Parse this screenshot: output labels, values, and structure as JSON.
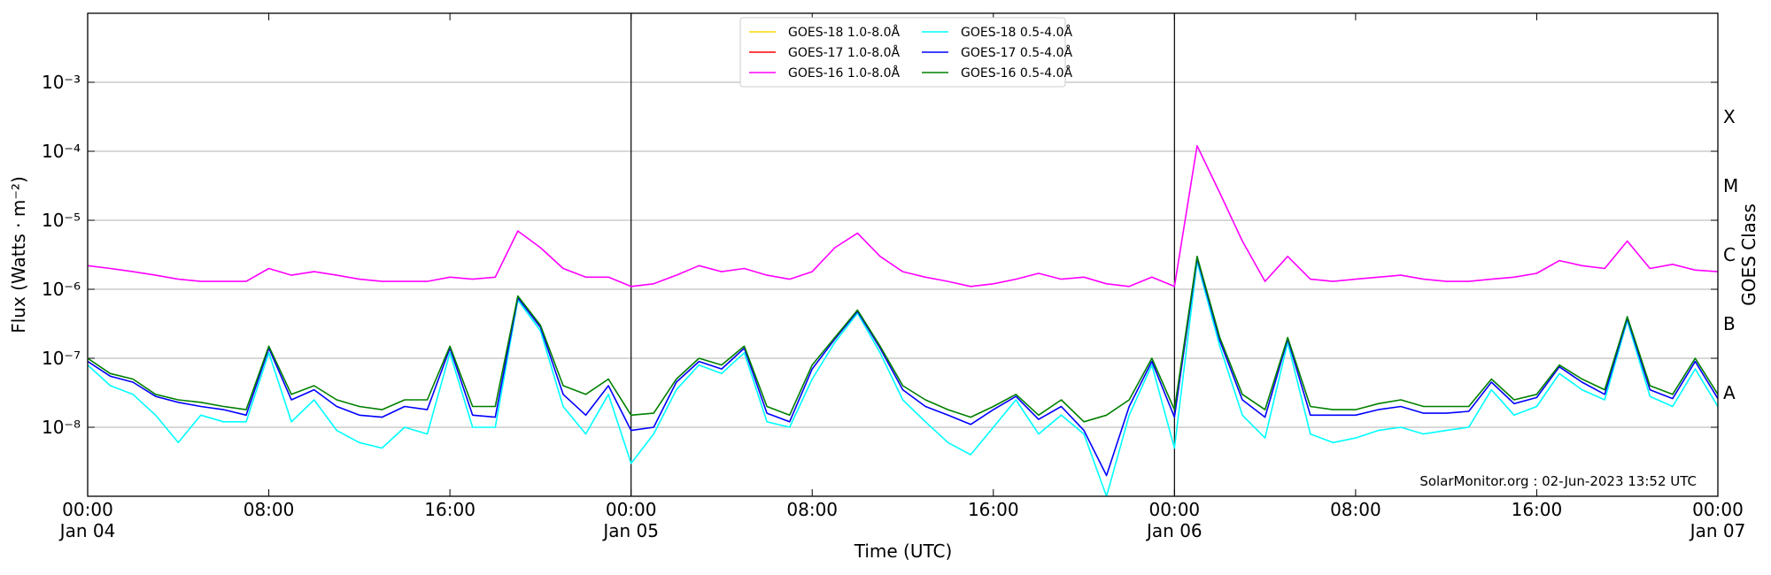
{
  "chart_data": {
    "type": "line",
    "ylabel": "Flux (Watts · m⁻²)",
    "xlabel": "Time (UTC)",
    "y2label": "GOES Class",
    "annotation": "SolarMonitor.org : 02-Jun-2023 13:52 UTC",
    "log_scale": true,
    "grid": true,
    "legend": "top",
    "xlim": [
      0,
      72
    ],
    "xticks": [
      {
        "value": 0,
        "label": "00:00\nJan 04"
      },
      {
        "value": 8,
        "label": "08:00"
      },
      {
        "value": 16,
        "label": "16:00"
      },
      {
        "value": 24,
        "label": "00:00\nJan 05"
      },
      {
        "value": 32,
        "label": "08:00"
      },
      {
        "value": 40,
        "label": "16:00"
      },
      {
        "value": 48,
        "label": "00:00\nJan 06"
      },
      {
        "value": 56,
        "label": "08:00"
      },
      {
        "value": 64,
        "label": "16:00"
      },
      {
        "value": 72,
        "label": "00:00\nJan 07"
      }
    ],
    "vlines": [
      24,
      48
    ],
    "ylim": [
      1e-09,
      0.01
    ],
    "yticks": [
      {
        "value": 1e-08,
        "label": "10⁻⁸"
      },
      {
        "value": 1e-07,
        "label": "10⁻⁷"
      },
      {
        "value": 1e-06,
        "label": "10⁻⁶"
      },
      {
        "value": 1e-05,
        "label": "10⁻⁵"
      },
      {
        "value": 0.0001,
        "label": "10⁻⁴"
      },
      {
        "value": 0.001,
        "label": "10⁻³"
      }
    ],
    "y2lim": [
      1e-09,
      0.01
    ],
    "y2ticks": [
      {
        "value": 3.16e-08,
        "label": "A"
      },
      {
        "value": 3.16e-07,
        "label": "B"
      },
      {
        "value": 3.16e-06,
        "label": "C"
      },
      {
        "value": 3.16e-05,
        "label": "M"
      },
      {
        "value": 0.000316,
        "label": "X"
      }
    ],
    "x": [
      0,
      1,
      2,
      3,
      4,
      5,
      6,
      7,
      8,
      9,
      10,
      11,
      12,
      13,
      14,
      15,
      16,
      17,
      18,
      19,
      20,
      21,
      22,
      23,
      24,
      25,
      26,
      27,
      28,
      29,
      30,
      31,
      32,
      33,
      34,
      35,
      36,
      37,
      38,
      39,
      40,
      41,
      42,
      43,
      44,
      45,
      46,
      47,
      48,
      49,
      50,
      51,
      52,
      53,
      54,
      55,
      56,
      57,
      58,
      59,
      60,
      61,
      62,
      63,
      64,
      65,
      66,
      67,
      68,
      69,
      70,
      71,
      72
    ],
    "series": [
      {
        "name": "GOES-18 1.0-8.0Å",
        "color": "#ffd700",
        "values": [
          null,
          null,
          null,
          null,
          null,
          null,
          null,
          null,
          null,
          null,
          null,
          null,
          null,
          null,
          null,
          null,
          null,
          null,
          null,
          null,
          null,
          null,
          null,
          null,
          null,
          null,
          null,
          null,
          null,
          null,
          null,
          null,
          null,
          null,
          null,
          null,
          null,
          null,
          null,
          null,
          null,
          null,
          null,
          null,
          null,
          null,
          null,
          null,
          null,
          null,
          null,
          null,
          null,
          null,
          null,
          null,
          null,
          null,
          null,
          null,
          null,
          null,
          null,
          null,
          null,
          null,
          null,
          null,
          null,
          null,
          null,
          null,
          null
        ]
      },
      {
        "name": "GOES-17 1.0-8.0Å",
        "color": "#ff0000",
        "values": [
          null,
          null,
          null,
          null,
          null,
          null,
          null,
          null,
          null,
          null,
          null,
          null,
          null,
          null,
          null,
          null,
          null,
          null,
          null,
          null,
          null,
          null,
          null,
          null,
          null,
          null,
          null,
          null,
          null,
          null,
          null,
          null,
          null,
          null,
          null,
          null,
          null,
          null,
          null,
          null,
          null,
          null,
          null,
          null,
          null,
          null,
          null,
          null,
          null,
          null,
          null,
          null,
          null,
          null,
          null,
          null,
          null,
          null,
          null,
          null,
          null,
          null,
          null,
          null,
          null,
          null,
          null,
          null,
          null,
          null,
          null,
          null,
          null
        ]
      },
      {
        "name": "GOES-16 1.0-8.0Å",
        "color": "#ff00ff",
        "values": [
          2.2e-06,
          2e-06,
          1.8e-06,
          1.6e-06,
          1.4e-06,
          1.3e-06,
          1.3e-06,
          1.3e-06,
          2e-06,
          1.6e-06,
          1.8e-06,
          1.6e-06,
          1.4e-06,
          1.3e-06,
          1.3e-06,
          1.3e-06,
          1.5e-06,
          1.4e-06,
          1.5e-06,
          7e-06,
          4e-06,
          2e-06,
          1.5e-06,
          1.5e-06,
          1.1e-06,
          1.2e-06,
          1.6e-06,
          2.2e-06,
          1.8e-06,
          2e-06,
          1.6e-06,
          1.4e-06,
          1.8e-06,
          4e-06,
          6.5e-06,
          3e-06,
          1.8e-06,
          1.5e-06,
          1.3e-06,
          1.1e-06,
          1.2e-06,
          1.4e-06,
          1.7e-06,
          1.4e-06,
          1.5e-06,
          1.2e-06,
          1.1e-06,
          1.5e-06,
          1.1e-06,
          0.00012,
          2.5e-05,
          5e-06,
          1.3e-06,
          3e-06,
          1.4e-06,
          1.3e-06,
          1.4e-06,
          1.5e-06,
          1.6e-06,
          1.4e-06,
          1.3e-06,
          1.3e-06,
          1.4e-06,
          1.5e-06,
          1.7e-06,
          2.6e-06,
          2.2e-06,
          2e-06,
          5e-06,
          2e-06,
          2.3e-06,
          1.9e-06,
          1.8e-06
        ]
      },
      {
        "name": "GOES-18 0.5-4.0Å",
        "color": "#00ffff",
        "values": [
          8e-08,
          4e-08,
          3e-08,
          1.5e-08,
          6e-09,
          1.5e-08,
          1.2e-08,
          1.2e-08,
          1.2e-07,
          1.2e-08,
          2.5e-08,
          9e-09,
          6e-09,
          5e-09,
          1e-08,
          8e-09,
          1.2e-07,
          1e-08,
          1e-08,
          7e-07,
          2.5e-07,
          2e-08,
          8e-09,
          3e-08,
          3e-09,
          8e-09,
          3.5e-08,
          8e-08,
          6e-08,
          1.2e-07,
          1.2e-08,
          1e-08,
          5e-08,
          1.7e-07,
          4.5e-07,
          1.2e-07,
          2.5e-08,
          1.2e-08,
          6e-09,
          4e-09,
          1e-08,
          2.5e-08,
          8e-09,
          1.5e-08,
          8e-09,
          1e-09,
          1.5e-08,
          8e-08,
          5e-09,
          2.5e-06,
          1.5e-07,
          1.5e-08,
          7e-09,
          1.7e-07,
          8e-09,
          6e-09,
          7e-09,
          9e-09,
          1e-08,
          8e-09,
          9e-09,
          1e-08,
          3.5e-08,
          1.5e-08,
          2e-08,
          6e-08,
          3.5e-08,
          2.5e-08,
          3.5e-07,
          2.8e-08,
          2e-08,
          7e-08,
          2e-08
        ]
      },
      {
        "name": "GOES-17 0.5-4.0Å",
        "color": "#0000ff",
        "values": [
          9e-08,
          5.5e-08,
          4.5e-08,
          2.8e-08,
          2.3e-08,
          2e-08,
          1.8e-08,
          1.5e-08,
          1.4e-07,
          2.5e-08,
          3.5e-08,
          2e-08,
          1.5e-08,
          1.4e-08,
          2e-08,
          1.8e-08,
          1.4e-07,
          1.5e-08,
          1.4e-08,
          7.5e-07,
          2.8e-07,
          3e-08,
          1.5e-08,
          4e-08,
          9e-09,
          1e-08,
          4.5e-08,
          9e-08,
          7e-08,
          1.4e-07,
          1.6e-08,
          1.2e-08,
          7e-08,
          1.9e-07,
          4.8e-07,
          1.4e-07,
          3.5e-08,
          2e-08,
          1.5e-08,
          1.1e-08,
          1.8e-08,
          2.8e-08,
          1.3e-08,
          2e-08,
          9e-09,
          2e-09,
          2e-08,
          9e-08,
          1.4e-08,
          2.8e-06,
          1.8e-07,
          2.5e-08,
          1.4e-08,
          1.9e-07,
          1.5e-08,
          1.5e-08,
          1.5e-08,
          1.8e-08,
          2e-08,
          1.6e-08,
          1.6e-08,
          1.7e-08,
          4.5e-08,
          2.2e-08,
          2.7e-08,
          7.5e-08,
          4.5e-08,
          3e-08,
          3.8e-07,
          3.5e-08,
          2.6e-08,
          9e-08,
          2.6e-08
        ]
      },
      {
        "name": "GOES-16 0.5-4.0Å",
        "color": "#008000",
        "values": [
          1e-07,
          6e-08,
          5e-08,
          3e-08,
          2.5e-08,
          2.3e-08,
          2e-08,
          1.8e-08,
          1.5e-07,
          3e-08,
          4e-08,
          2.5e-08,
          2e-08,
          1.8e-08,
          2.5e-08,
          2.5e-08,
          1.5e-07,
          2e-08,
          2e-08,
          8e-07,
          3e-07,
          4e-08,
          3e-08,
          5e-08,
          1.5e-08,
          1.6e-08,
          5e-08,
          1e-07,
          8e-08,
          1.5e-07,
          2e-08,
          1.5e-08,
          8e-08,
          2e-07,
          5e-07,
          1.5e-07,
          4e-08,
          2.5e-08,
          1.8e-08,
          1.4e-08,
          2e-08,
          3e-08,
          1.5e-08,
          2.5e-08,
          1.2e-08,
          1.5e-08,
          2.5e-08,
          1e-07,
          1.8e-08,
          3e-06,
          2e-07,
          3e-08,
          1.8e-08,
          2e-07,
          2e-08,
          1.8e-08,
          1.8e-08,
          2.2e-08,
          2.5e-08,
          2e-08,
          2e-08,
          2e-08,
          5e-08,
          2.5e-08,
          3e-08,
          8e-08,
          5e-08,
          3.5e-08,
          4e-07,
          4e-08,
          3e-08,
          1e-07,
          3e-08
        ]
      }
    ]
  }
}
